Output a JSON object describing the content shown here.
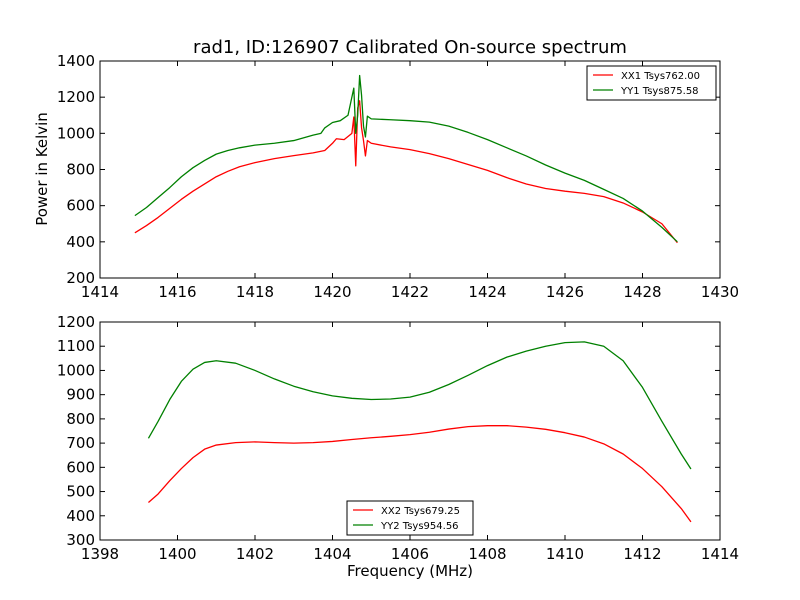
{
  "figure": {
    "title": "rad1, ID:126907 Calibrated On-source spectrum",
    "ylabel": "Power in Kelvin",
    "xlabel": "Frequency (MHz)"
  },
  "chart_data": [
    {
      "type": "line",
      "xlim": [
        1414,
        1430
      ],
      "ylim": [
        200,
        1400
      ],
      "xticks": [
        1414,
        1416,
        1418,
        1420,
        1422,
        1424,
        1426,
        1428,
        1430
      ],
      "yticks": [
        200,
        400,
        600,
        800,
        1000,
        1200,
        1400
      ],
      "legend_position": "top-right",
      "series": [
        {
          "name": "XX1 Tsys762.00",
          "color": "#ff0000",
          "points": [
            [
              1414.9,
              450
            ],
            [
              1415.2,
              490
            ],
            [
              1415.5,
              535
            ],
            [
              1415.8,
              585
            ],
            [
              1416.1,
              635
            ],
            [
              1416.4,
              680
            ],
            [
              1416.7,
              720
            ],
            [
              1417.0,
              760
            ],
            [
              1417.3,
              790
            ],
            [
              1417.6,
              815
            ],
            [
              1418.0,
              838
            ],
            [
              1418.5,
              860
            ],
            [
              1419.0,
              877
            ],
            [
              1419.5,
              892
            ],
            [
              1419.8,
              905
            ],
            [
              1420.0,
              945
            ],
            [
              1420.1,
              970
            ],
            [
              1420.3,
              965
            ],
            [
              1420.5,
              1000
            ],
            [
              1420.55,
              1090
            ],
            [
              1420.6,
              820
            ],
            [
              1420.65,
              1140
            ],
            [
              1420.7,
              1180
            ],
            [
              1420.75,
              1030
            ],
            [
              1420.8,
              960
            ],
            [
              1420.85,
              875
            ],
            [
              1420.9,
              960
            ],
            [
              1421.0,
              945
            ],
            [
              1421.5,
              925
            ],
            [
              1422.0,
              910
            ],
            [
              1422.5,
              888
            ],
            [
              1423.0,
              860
            ],
            [
              1423.5,
              828
            ],
            [
              1424.0,
              795
            ],
            [
              1424.5,
              755
            ],
            [
              1425.0,
              720
            ],
            [
              1425.5,
              695
            ],
            [
              1426.0,
              680
            ],
            [
              1426.5,
              668
            ],
            [
              1427.0,
              650
            ],
            [
              1427.5,
              615
            ],
            [
              1428.0,
              565
            ],
            [
              1428.5,
              500
            ],
            [
              1428.9,
              395
            ]
          ]
        },
        {
          "name": "YY1 Tsys875.58",
          "color": "#008000",
          "points": [
            [
              1414.9,
              545
            ],
            [
              1415.2,
              590
            ],
            [
              1415.5,
              645
            ],
            [
              1415.8,
              700
            ],
            [
              1416.1,
              760
            ],
            [
              1416.4,
              810
            ],
            [
              1416.7,
              850
            ],
            [
              1417.0,
              885
            ],
            [
              1417.3,
              905
            ],
            [
              1417.6,
              920
            ],
            [
              1418.0,
              935
            ],
            [
              1418.5,
              945
            ],
            [
              1419.0,
              960
            ],
            [
              1419.5,
              990
            ],
            [
              1419.7,
              1000
            ],
            [
              1419.8,
              1030
            ],
            [
              1420.0,
              1060
            ],
            [
              1420.2,
              1070
            ],
            [
              1420.4,
              1100
            ],
            [
              1420.5,
              1200
            ],
            [
              1420.55,
              1250
            ],
            [
              1420.6,
              1000
            ],
            [
              1420.65,
              1100
            ],
            [
              1420.7,
              1320
            ],
            [
              1420.75,
              1210
            ],
            [
              1420.8,
              1040
            ],
            [
              1420.85,
              980
            ],
            [
              1420.9,
              1095
            ],
            [
              1421.0,
              1080
            ],
            [
              1421.5,
              1075
            ],
            [
              1422.0,
              1070
            ],
            [
              1422.5,
              1062
            ],
            [
              1423.0,
              1040
            ],
            [
              1423.5,
              1005
            ],
            [
              1424.0,
              965
            ],
            [
              1424.5,
              920
            ],
            [
              1425.0,
              875
            ],
            [
              1425.5,
              825
            ],
            [
              1426.0,
              780
            ],
            [
              1426.5,
              740
            ],
            [
              1427.0,
              690
            ],
            [
              1427.5,
              640
            ],
            [
              1428.0,
              570
            ],
            [
              1428.5,
              480
            ],
            [
              1428.9,
              400
            ]
          ]
        }
      ]
    },
    {
      "type": "line",
      "xlim": [
        1398,
        1414
      ],
      "ylim": [
        300,
        1200
      ],
      "xticks": [
        1398,
        1400,
        1402,
        1404,
        1406,
        1408,
        1410,
        1412,
        1414
      ],
      "yticks": [
        300,
        400,
        500,
        600,
        700,
        800,
        900,
        1000,
        1100,
        1200
      ],
      "legend_position": "bottom-center",
      "series": [
        {
          "name": "XX2 Tsys679.25",
          "color": "#ff0000",
          "points": [
            [
              1399.25,
              455
            ],
            [
              1399.5,
              490
            ],
            [
              1399.8,
              545
            ],
            [
              1400.1,
              595
            ],
            [
              1400.4,
              640
            ],
            [
              1400.7,
              675
            ],
            [
              1401.0,
              692
            ],
            [
              1401.5,
              702
            ],
            [
              1402.0,
              705
            ],
            [
              1402.5,
              702
            ],
            [
              1403.0,
              700
            ],
            [
              1403.5,
              702
            ],
            [
              1404.0,
              707
            ],
            [
              1404.5,
              715
            ],
            [
              1405.0,
              722
            ],
            [
              1405.5,
              728
            ],
            [
              1406.0,
              735
            ],
            [
              1406.5,
              745
            ],
            [
              1407.0,
              758
            ],
            [
              1407.5,
              768
            ],
            [
              1408.0,
              772
            ],
            [
              1408.5,
              772
            ],
            [
              1409.0,
              766
            ],
            [
              1409.5,
              757
            ],
            [
              1410.0,
              743
            ],
            [
              1410.5,
              725
            ],
            [
              1411.0,
              697
            ],
            [
              1411.5,
              655
            ],
            [
              1412.0,
              595
            ],
            [
              1412.5,
              520
            ],
            [
              1413.0,
              430
            ],
            [
              1413.25,
              375
            ]
          ]
        },
        {
          "name": "YY2 Tsys954.56",
          "color": "#008000",
          "points": [
            [
              1399.25,
              720
            ],
            [
              1399.5,
              790
            ],
            [
              1399.8,
              880
            ],
            [
              1400.1,
              955
            ],
            [
              1400.4,
              1005
            ],
            [
              1400.7,
              1033
            ],
            [
              1401.0,
              1040
            ],
            [
              1401.5,
              1030
            ],
            [
              1402.0,
              1000
            ],
            [
              1402.5,
              965
            ],
            [
              1403.0,
              935
            ],
            [
              1403.5,
              912
            ],
            [
              1404.0,
              895
            ],
            [
              1404.5,
              885
            ],
            [
              1405.0,
              880
            ],
            [
              1405.5,
              882
            ],
            [
              1406.0,
              890
            ],
            [
              1406.5,
              910
            ],
            [
              1407.0,
              942
            ],
            [
              1407.5,
              980
            ],
            [
              1408.0,
              1020
            ],
            [
              1408.5,
              1055
            ],
            [
              1409.0,
              1080
            ],
            [
              1409.5,
              1100
            ],
            [
              1410.0,
              1115
            ],
            [
              1410.5,
              1118
            ],
            [
              1411.0,
              1100
            ],
            [
              1411.5,
              1040
            ],
            [
              1412.0,
              930
            ],
            [
              1412.5,
              790
            ],
            [
              1413.0,
              655
            ],
            [
              1413.25,
              593
            ]
          ]
        }
      ]
    }
  ]
}
